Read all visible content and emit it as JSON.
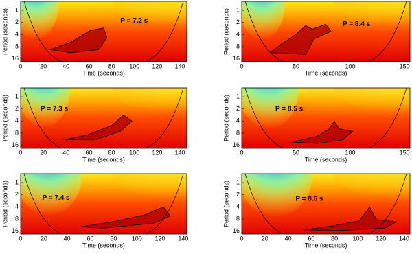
{
  "chart_data": [
    {
      "type": "heatmap",
      "annotation": "P = 7.2 s",
      "xlabel": "Time (seconds)",
      "ylabel": "Period (seconds)",
      "xlim": [
        0,
        146
      ],
      "xticks": [
        0,
        20,
        40,
        60,
        80,
        100,
        120,
        140
      ],
      "ylim": [
        0.6,
        19
      ],
      "yticks": [
        1,
        2,
        4,
        8,
        16
      ],
      "ylog": true
    },
    {
      "type": "heatmap",
      "annotation": "P = 8.4 s",
      "xlabel": "Time (seconds)",
      "ylabel": "Period (seconds)",
      "xlim": [
        0,
        155
      ],
      "xticks": [
        0,
        50,
        100,
        150
      ],
      "ylim": [
        0.6,
        19
      ],
      "yticks": [
        1,
        2,
        4,
        8,
        16
      ],
      "ylog": true
    },
    {
      "type": "heatmap",
      "annotation": "P = 7.3 s",
      "xlabel": "Time (seconds)",
      "ylabel": "Period (seconds)",
      "xlim": [
        0,
        146
      ],
      "xticks": [
        0,
        20,
        40,
        60,
        80,
        100,
        120,
        140
      ],
      "ylim": [
        0.6,
        19
      ],
      "yticks": [
        1,
        2,
        4,
        8,
        16
      ],
      "ylog": true
    },
    {
      "type": "heatmap",
      "annotation": "P = 8.5 s",
      "xlabel": "Time (seconds)",
      "ylabel": "Period (seconds)",
      "xlim": [
        0,
        155
      ],
      "xticks": [
        0,
        50,
        100,
        150
      ],
      "ylim": [
        0.6,
        19
      ],
      "yticks": [
        1,
        2,
        4,
        8,
        16
      ],
      "ylog": true
    },
    {
      "type": "heatmap",
      "annotation": "P = 7.4 s",
      "xlabel": "Time (seconds)",
      "ylabel": "Period (seconds)",
      "xlim": [
        0,
        143
      ],
      "xticks": [
        0,
        20,
        40,
        60,
        80,
        100,
        120,
        140
      ],
      "ylim": [
        0.6,
        19
      ],
      "yticks": [
        1,
        2,
        4,
        8,
        16
      ],
      "ylog": true
    },
    {
      "type": "heatmap",
      "annotation": "P = 8.6 s",
      "xlabel": "Time (seconds)",
      "ylabel": "Period (seconds)",
      "xlim": [
        0,
        145
      ],
      "xticks": [
        0,
        20,
        40,
        60,
        80,
        100,
        120,
        140
      ],
      "ylim": [
        0.6,
        19
      ],
      "yticks": [
        1,
        2,
        4,
        8,
        16
      ],
      "ylog": true
    }
  ]
}
